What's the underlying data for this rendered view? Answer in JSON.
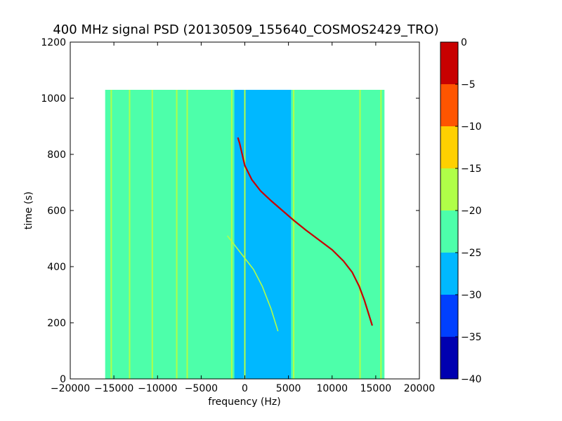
{
  "chart_data": {
    "type": "heatmap",
    "title": "400 MHz signal PSD (20130509_155640_COSMOS2429_TRO)",
    "xlabel": "frequency (Hz)",
    "ylabel": "time (s)",
    "xlim": [
      -20000,
      20000
    ],
    "ylim": [
      0,
      1200
    ],
    "x_ticks": [
      -20000,
      -15000,
      -10000,
      -5000,
      0,
      5000,
      10000,
      15000,
      20000
    ],
    "x_tick_labels": [
      "−20000",
      "−15000",
      "−10000",
      "−5000",
      "0",
      "5000",
      "10000",
      "15000",
      "20000"
    ],
    "y_ticks": [
      0,
      200,
      400,
      600,
      800,
      1000,
      1200
    ],
    "y_tick_labels": [
      "0",
      "200",
      "400",
      "600",
      "800",
      "1000",
      "1200"
    ],
    "data_extent": {
      "x": [
        -16000,
        16000
      ],
      "y": [
        0,
        1030
      ]
    },
    "background_level": -22.5,
    "colorbar": {
      "range": [
        -40,
        0
      ],
      "ticks": [
        0,
        -5,
        -10,
        -15,
        -20,
        -25,
        -30,
        -35,
        -40
      ],
      "tick_labels": [
        "0",
        "−5",
        "−10",
        "−15",
        "−20",
        "−25",
        "−30",
        "−35",
        "−40"
      ],
      "levels": [
        {
          "min": -40,
          "max": -35,
          "color": "#0000b0"
        },
        {
          "min": -35,
          "max": -30,
          "color": "#0040ff"
        },
        {
          "min": -30,
          "max": -25,
          "color": "#00b8ff"
        },
        {
          "min": -25,
          "max": -20,
          "color": "#4dffaa"
        },
        {
          "min": -20,
          "max": -15,
          "color": "#b0ff48"
        },
        {
          "min": -15,
          "max": -10,
          "color": "#ffd000"
        },
        {
          "min": -10,
          "max": -5,
          "color": "#ff5500"
        },
        {
          "min": -5,
          "max": 0,
          "color": "#c80000"
        }
      ]
    },
    "regions": [
      {
        "name": "low-power band",
        "x": [
          -1200,
          5300
        ],
        "y": [
          0,
          1030
        ],
        "level": -27.5
      }
    ],
    "series": [
      {
        "name": "",
        "kind": "doppler trace",
        "level": -2.5,
        "x": [
          -800,
          -600,
          0,
          800,
          1800,
          3000,
          4300,
          5600,
          7000,
          8500,
          10000,
          11300,
          12300,
          13100,
          13700,
          14200,
          14600
        ],
        "y": [
          860,
          840,
          760,
          710,
          670,
          635,
          600,
          565,
          530,
          495,
          460,
          420,
          380,
          330,
          280,
          230,
          190
        ]
      },
      {
        "name": "",
        "kind": "faint trace",
        "level": -17.5,
        "x": [
          -2000,
          -1000,
          0,
          1000,
          2000,
          3000,
          3800
        ],
        "y": [
          510,
          470,
          430,
          390,
          330,
          250,
          170
        ]
      }
    ],
    "spur_lines": [
      {
        "x": -15300,
        "level": -17.5
      },
      {
        "x": -13200,
        "level": -17.5
      },
      {
        "x": -10600,
        "level": -17.5
      },
      {
        "x": -7800,
        "level": -17.5
      },
      {
        "x": -6600,
        "level": -17.5
      },
      {
        "x": -1500,
        "level": -17.5
      },
      {
        "x": 0,
        "level": -17.5
      },
      {
        "x": 5600,
        "level": -17.5
      },
      {
        "x": 13200,
        "level": -17.5
      },
      {
        "x": 15600,
        "level": -17.5
      }
    ]
  }
}
